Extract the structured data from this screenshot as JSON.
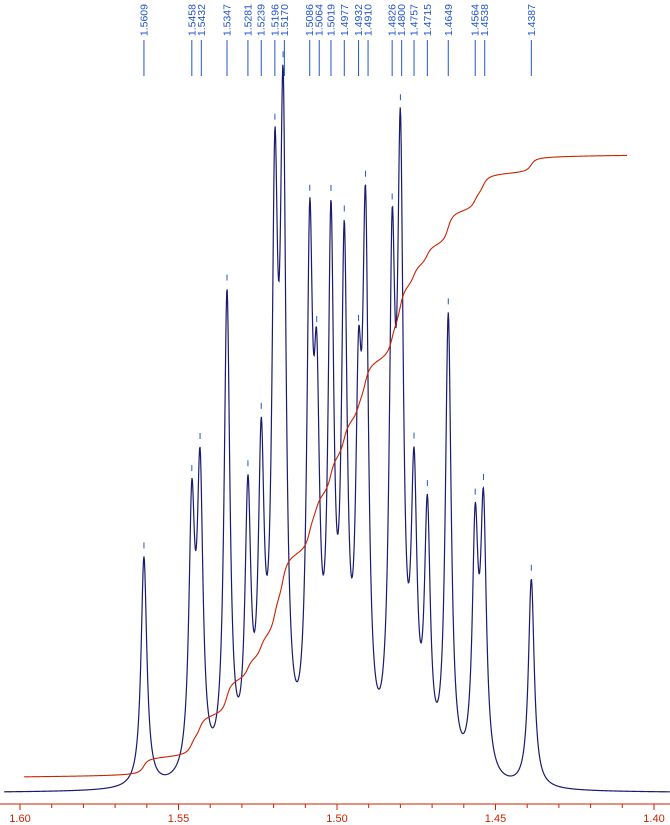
{
  "chart_data": {
    "type": "line",
    "title": "",
    "xlabel": "",
    "ylabel": "",
    "x_axis": {
      "range": [
        1.605,
        1.395
      ],
      "reversed": true,
      "tick_labels": [
        "1.60",
        "1.55",
        "1.50",
        "1.45",
        "1.40"
      ],
      "tick_values": [
        1.6,
        1.55,
        1.5,
        1.45,
        1.4
      ],
      "minor_tick_step": 0.01
    },
    "peak_labels": [
      "1.5609",
      "1.5458",
      "1.5432",
      "1.5347",
      "1.5281",
      "1.5239",
      "1.5196",
      "1.5170",
      "1.5086",
      "1.5064",
      "1.5019",
      "1.4977",
      "1.4932",
      "1.4910",
      "1.4826",
      "1.4800",
      "1.4757",
      "1.4715",
      "1.4649",
      "1.4564",
      "1.4538",
      "1.4387"
    ],
    "series": [
      {
        "kind": "spectrum",
        "peaks": [
          {
            "ppm": 1.5609,
            "intensity": 0.42
          },
          {
            "ppm": 1.5458,
            "intensity": 0.47
          },
          {
            "ppm": 1.5432,
            "intensity": 0.53
          },
          {
            "ppm": 1.5347,
            "intensity": 0.87
          },
          {
            "ppm": 1.5281,
            "intensity": 0.48
          },
          {
            "ppm": 1.5239,
            "intensity": 0.54
          },
          {
            "ppm": 1.5196,
            "intensity": 0.97
          },
          {
            "ppm": 1.517,
            "intensity": 1.12
          },
          {
            "ppm": 1.5086,
            "intensity": 0.89
          },
          {
            "ppm": 1.5064,
            "intensity": 0.56
          },
          {
            "ppm": 1.5019,
            "intensity": 0.93
          },
          {
            "ppm": 1.4977,
            "intensity": 0.89
          },
          {
            "ppm": 1.4932,
            "intensity": 0.56
          },
          {
            "ppm": 1.491,
            "intensity": 0.92
          },
          {
            "ppm": 1.4826,
            "intensity": 0.85
          },
          {
            "ppm": 1.48,
            "intensity": 1.05
          },
          {
            "ppm": 1.4757,
            "intensity": 0.49
          },
          {
            "ppm": 1.4715,
            "intensity": 0.45
          },
          {
            "ppm": 1.4649,
            "intensity": 0.83
          },
          {
            "ppm": 1.4564,
            "intensity": 0.43
          },
          {
            "ppm": 1.4538,
            "intensity": 0.47
          },
          {
            "ppm": 1.4387,
            "intensity": 0.38
          }
        ],
        "linewidth_ppm": 0.0011,
        "color": "#1a1a6e"
      },
      {
        "kind": "integral",
        "color": "#cc2200"
      }
    ],
    "colors": {
      "spectrum": "#1a1a6e",
      "integral": "#cc2200",
      "peak_marker": "#2255cc",
      "axis": "#cc2200",
      "tick_label": "#cc2200"
    },
    "grid": false,
    "legend": "none"
  }
}
